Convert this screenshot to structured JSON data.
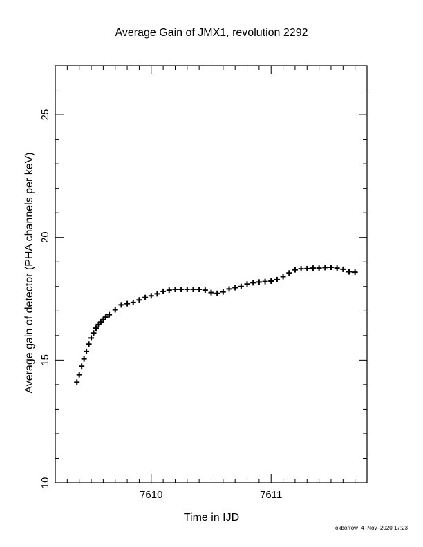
{
  "chart_data": {
    "type": "scatter",
    "title": "Average Gain of JMX1, revolution 2292",
    "xlabel": "Time in IJD",
    "ylabel": "Average gain of detector (PHA channels per keV)",
    "xlim": [
      7609.2,
      7611.8
    ],
    "ylim": [
      10,
      27
    ],
    "x_ticks": [
      7610,
      7611
    ],
    "x_tick_labels": [
      "7610",
      "7611"
    ],
    "y_ticks": [
      10,
      15,
      20,
      25
    ],
    "y_tick_labels": [
      "10",
      "15",
      "20",
      "25"
    ],
    "x_minor_step": 0.1,
    "y_minor_step": 1,
    "marker": "plus",
    "grid": false,
    "series": [
      {
        "color": "#000000",
        "x": [
          7609.38,
          7609.4,
          7609.42,
          7609.44,
          7609.46,
          7609.48,
          7609.5,
          7609.52,
          7609.54,
          7609.56,
          7609.58,
          7609.6,
          7609.62,
          7609.65,
          7609.7,
          7609.75,
          7609.8,
          7609.85,
          7609.9,
          7609.95,
          7610.0,
          7610.05,
          7610.1,
          7610.15,
          7610.2,
          7610.25,
          7610.3,
          7610.35,
          7610.4,
          7610.45,
          7610.5,
          7610.55,
          7610.6,
          7610.65,
          7610.7,
          7610.75,
          7610.8,
          7610.85,
          7610.9,
          7610.95,
          7611.0,
          7611.05,
          7611.1,
          7611.15,
          7611.2,
          7611.25,
          7611.3,
          7611.35,
          7611.4,
          7611.45,
          7611.5,
          7611.55,
          7611.6,
          7611.65,
          7611.7
        ],
        "y": [
          14.1,
          14.4,
          14.75,
          15.05,
          15.35,
          15.65,
          15.9,
          16.1,
          16.3,
          16.45,
          16.55,
          16.65,
          16.75,
          16.85,
          17.05,
          17.25,
          17.3,
          17.35,
          17.45,
          17.55,
          17.62,
          17.7,
          17.8,
          17.85,
          17.88,
          17.88,
          17.88,
          17.88,
          17.88,
          17.85,
          17.75,
          17.72,
          17.78,
          17.9,
          17.95,
          18.0,
          18.1,
          18.15,
          18.18,
          18.2,
          18.22,
          18.28,
          18.4,
          18.55,
          18.68,
          18.72,
          18.73,
          18.75,
          18.75,
          18.77,
          18.78,
          18.75,
          18.7,
          18.6,
          18.58
        ]
      }
    ]
  },
  "footer": {
    "author": "oxborrow",
    "timestamp": "4–Nov–2020 17:23"
  }
}
